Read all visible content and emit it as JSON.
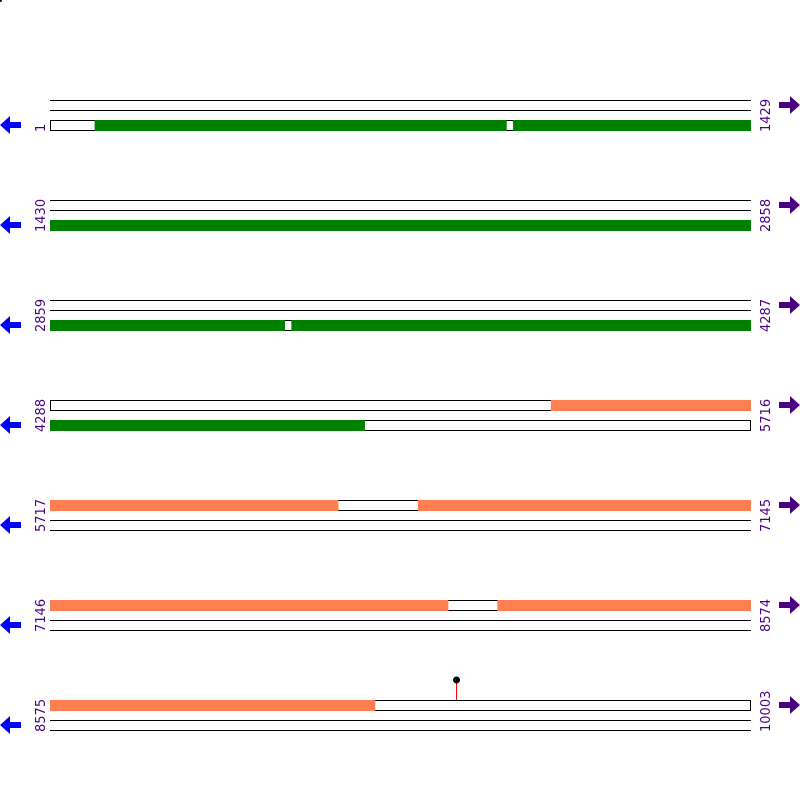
{
  "colors": {
    "track_line": "#000000",
    "frame_green": "#008000",
    "frame_orange": "#ff7f50",
    "left_arrow": "#0000ff",
    "right_arrow": "#4b0082",
    "coord_text": "#4b0082",
    "marker_stem": "#ff0000",
    "marker_head": "#000000"
  },
  "icons": {
    "left": "arrow-left-icon",
    "right": "arrow-right-icon"
  },
  "rows": [
    {
      "start_label": "1",
      "end_label": "1429",
      "range": [
        1,
        1429
      ],
      "features": [
        {
          "frame": 3,
          "color": "frame_green",
          "from": 92,
          "to": 931
        },
        {
          "frame": 3,
          "color": "frame_green",
          "from": 945,
          "to": 1429
        }
      ]
    },
    {
      "start_label": "1430",
      "end_label": "2858",
      "range": [
        1430,
        2858
      ],
      "features": [
        {
          "frame": 3,
          "color": "frame_green",
          "from": 1430,
          "to": 2858
        }
      ]
    },
    {
      "start_label": "2859",
      "end_label": "4287",
      "range": [
        2859,
        4287
      ],
      "features": [
        {
          "frame": 3,
          "color": "frame_green",
          "from": 2859,
          "to": 3337
        },
        {
          "frame": 3,
          "color": "frame_green",
          "from": 3351,
          "to": 4287
        }
      ]
    },
    {
      "start_label": "4288",
      "end_label": "5716",
      "range": [
        4288,
        5716
      ],
      "features": [
        {
          "frame": 1,
          "color": "frame_orange",
          "from": 5309,
          "to": 5716
        },
        {
          "frame": 3,
          "color": "frame_green",
          "from": 4288,
          "to": 4929
        }
      ]
    },
    {
      "start_label": "5717",
      "end_label": "7145",
      "range": [
        5717,
        7145
      ],
      "features": [
        {
          "frame": 1,
          "color": "frame_orange",
          "from": 5717,
          "to": 6304
        },
        {
          "frame": 1,
          "color": "frame_orange",
          "from": 6467,
          "to": 7145
        }
      ]
    },
    {
      "start_label": "7146",
      "end_label": "8574",
      "range": [
        7146,
        8574
      ],
      "features": [
        {
          "frame": 1,
          "color": "frame_orange",
          "from": 7146,
          "to": 7957
        },
        {
          "frame": 1,
          "color": "frame_orange",
          "from": 8058,
          "to": 8574
        }
      ]
    },
    {
      "start_label": "8575",
      "end_label": "10003",
      "range": [
        8575,
        10003
      ],
      "features": [
        {
          "frame": 1,
          "color": "frame_orange",
          "from": 8575,
          "to": 9237
        }
      ],
      "markers": [
        {
          "position": 9402
        }
      ]
    }
  ]
}
